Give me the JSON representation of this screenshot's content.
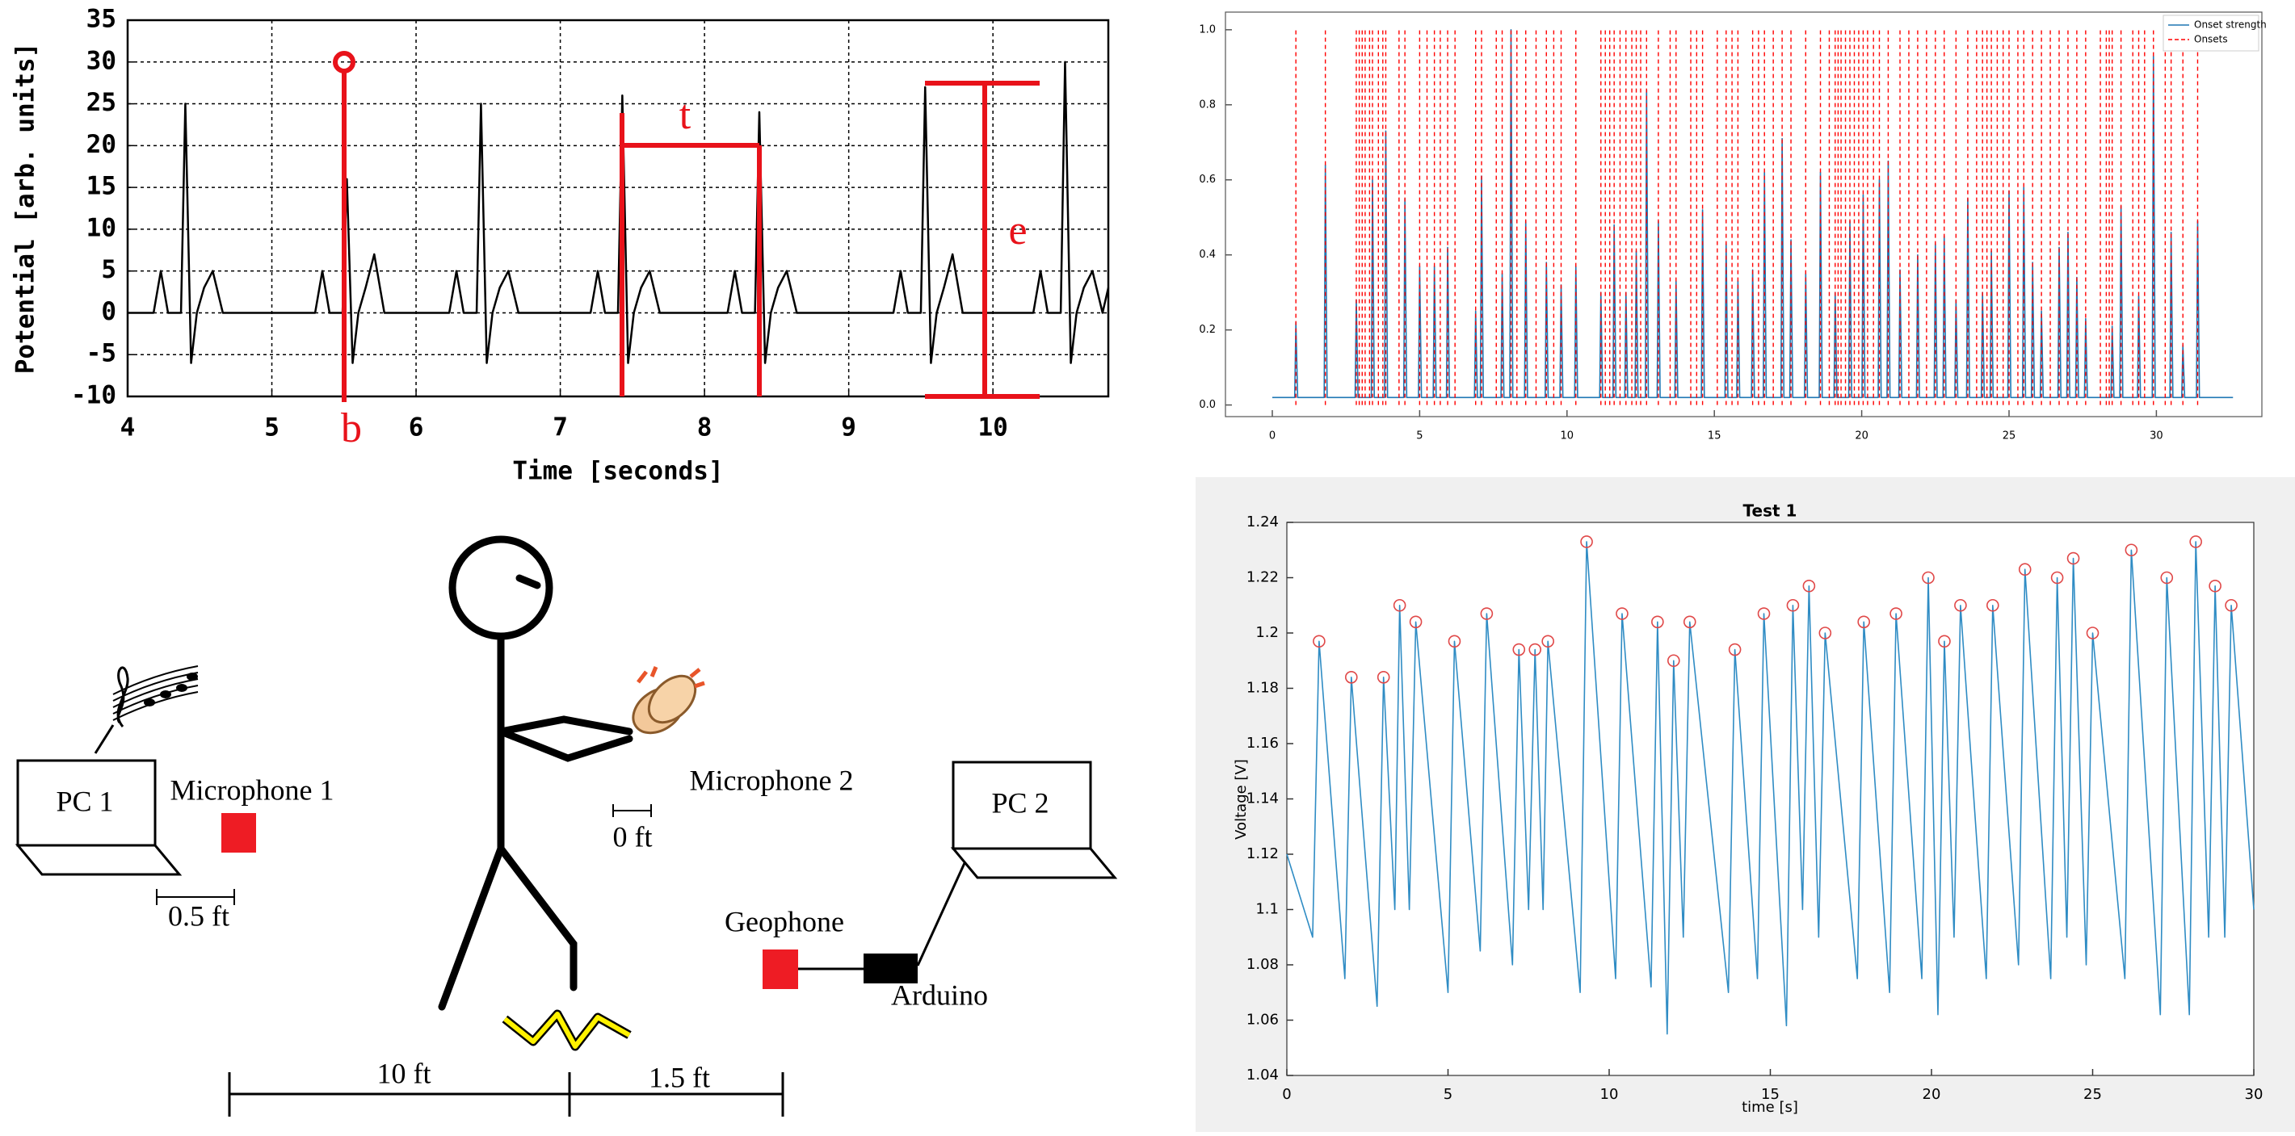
{
  "chart_data": [
    {
      "type": "line",
      "xlabel": "Time [seconds]",
      "ylabel": "Potential [arb. units]",
      "annotations": [
        "b",
        "t",
        "e"
      ],
      "xlim": [
        4,
        10.8
      ],
      "ylim": [
        -10,
        35
      ],
      "xticks": [
        4,
        5,
        6,
        7,
        8,
        9,
        10
      ],
      "yticks": [
        -10,
        -5,
        0,
        5,
        10,
        15,
        20,
        25,
        30,
        35
      ],
      "grid": true,
      "x": [
        4.0,
        4.18,
        4.23,
        4.28,
        4.37,
        4.4,
        4.44,
        4.48,
        4.53,
        4.59,
        4.66,
        5.3,
        5.35,
        5.4,
        5.49,
        5.52,
        5.56,
        5.6,
        5.65,
        5.71,
        5.78,
        6.23,
        6.28,
        6.33,
        6.42,
        6.45,
        6.49,
        6.53,
        6.58,
        6.64,
        6.71,
        7.21,
        7.26,
        7.31,
        7.4,
        7.43,
        7.47,
        7.51,
        7.56,
        7.62,
        7.69,
        8.16,
        8.21,
        8.26,
        8.35,
        8.38,
        8.42,
        8.46,
        8.51,
        8.57,
        8.64,
        9.31,
        9.36,
        9.41,
        9.5,
        9.53,
        9.57,
        9.61,
        9.66,
        9.72,
        9.79,
        10.28,
        10.33,
        10.38,
        10.47,
        10.5,
        10.54,
        10.58,
        10.63,
        10.69,
        10.76,
        10.8
      ],
      "series": [
        {
          "color": "#000000",
          "values": [
            0,
            0,
            5,
            0,
            0,
            25,
            -6,
            0,
            3,
            5,
            0,
            0,
            5,
            0,
            0,
            16,
            -6,
            0,
            3,
            7,
            0,
            0,
            5,
            0,
            0,
            25,
            -6,
            0,
            3,
            5,
            0,
            0,
            5,
            0,
            0,
            26,
            -6,
            0,
            3,
            5,
            0,
            0,
            5,
            0,
            0,
            24,
            -6,
            0,
            3,
            5,
            0,
            0,
            5,
            0,
            0,
            27,
            -6,
            0,
            3,
            7,
            0,
            0,
            5,
            0,
            0,
            30,
            -6,
            0,
            3,
            5,
            0,
            3
          ]
        }
      ]
    },
    {
      "type": "line",
      "legend": "upper right",
      "xlim": [
        -1.59,
        33.58
      ],
      "ylim": [
        -0.031,
        1.047
      ],
      "xticks": [
        0,
        5,
        10,
        15,
        20,
        25,
        30
      ],
      "yticks": [
        {
          "value": 0,
          "label": "0.0"
        },
        0.2,
        0.4,
        0.6,
        0.8,
        {
          "value": 1,
          "label": "1.0"
        }
      ],
      "grid": false,
      "series": [
        {
          "name": "Onset strength",
          "color": "#1f77b4",
          "x": [
            0,
            0.76,
            0.8,
            0.86,
            1.76,
            1.8,
            1.86,
            2.81,
            2.85,
            2.91,
            3.36,
            3.4,
            3.46,
            3.81,
            3.85,
            3.91,
            4.46,
            4.5,
            4.56,
            4.96,
            5.0,
            5.06,
            5.46,
            5.5,
            5.56,
            5.91,
            5.95,
            6.01,
            6.86,
            6.9,
            6.96,
            7.06,
            7.1,
            7.16,
            7.76,
            7.8,
            7.86,
            8.06,
            8.1,
            8.16,
            8.56,
            8.6,
            8.66,
            9.26,
            9.3,
            9.36,
            9.76,
            9.8,
            9.86,
            10.26,
            10.3,
            10.36,
            11.11,
            11.15,
            11.21,
            11.56,
            11.6,
            11.66,
            11.96,
            12.0,
            12.06,
            12.31,
            12.35,
            12.41,
            12.66,
            12.7,
            12.76,
            13.06,
            13.1,
            13.16,
            13.66,
            13.7,
            13.76,
            14.56,
            14.6,
            14.66,
            15.36,
            15.4,
            15.46,
            15.76,
            15.8,
            15.86,
            16.26,
            16.3,
            16.36,
            16.66,
            16.7,
            16.76,
            17.26,
            17.3,
            17.36,
            17.56,
            17.6,
            17.66,
            18.06,
            18.1,
            18.16,
            18.56,
            18.6,
            18.66,
            19.06,
            19.1,
            19.16,
            19.56,
            19.6,
            19.66,
            20.01,
            20.05,
            20.11,
            20.56,
            20.6,
            20.66,
            20.86,
            20.9,
            20.96,
            21.26,
            21.3,
            21.36,
            21.86,
            21.9,
            21.96,
            22.46,
            22.5,
            22.56,
            22.76,
            22.8,
            22.86,
            23.16,
            23.2,
            23.26,
            23.56,
            23.6,
            23.66,
            24.06,
            24.1,
            24.16,
            24.36,
            24.4,
            24.46,
            24.96,
            25.0,
            25.06,
            25.46,
            25.5,
            25.56,
            25.76,
            25.8,
            25.86,
            26.06,
            26.1,
            26.16,
            26.66,
            26.7,
            26.76,
            26.96,
            27.0,
            27.06,
            27.26,
            27.3,
            27.36,
            27.56,
            27.6,
            27.66,
            28.46,
            28.5,
            28.56,
            28.76,
            28.8,
            28.86,
            29.36,
            29.4,
            29.46,
            29.86,
            29.9,
            29.96,
            30.46,
            30.5,
            30.56,
            30.86,
            30.9,
            30.96,
            31.36,
            31.4,
            31.46,
            32.6
          ],
          "values": [
            0.02,
            0.02,
            0.22,
            0.02,
            0.02,
            0.64,
            0.02,
            0.02,
            0.28,
            0.02,
            0.02,
            0.6,
            0.02,
            0.02,
            0.73,
            0.02,
            0.02,
            0.55,
            0.02,
            0.02,
            0.37,
            0.02,
            0.02,
            0.37,
            0.02,
            0.02,
            0.42,
            0.02,
            0.02,
            0.25,
            0.02,
            0.02,
            0.61,
            0.02,
            0.02,
            0.35,
            0.02,
            0.02,
            1.0,
            0.02,
            0.02,
            0.49,
            0.02,
            0.02,
            0.38,
            0.02,
            0.02,
            0.32,
            0.02,
            0.02,
            0.37,
            0.02,
            0.02,
            0.3,
            0.02,
            0.02,
            0.48,
            0.02,
            0.02,
            0.3,
            0.02,
            0.02,
            0.41,
            0.02,
            0.02,
            0.84,
            0.02,
            0.02,
            0.49,
            0.02,
            0.02,
            0.33,
            0.02,
            0.02,
            0.52,
            0.02,
            0.02,
            0.43,
            0.02,
            0.02,
            0.33,
            0.02,
            0.02,
            0.36,
            0.02,
            0.02,
            0.62,
            0.02,
            0.02,
            0.71,
            0.02,
            0.02,
            0.44,
            0.02,
            0.02,
            0.35,
            0.02,
            0.02,
            0.62,
            0.02,
            0.02,
            0.3,
            0.02,
            0.02,
            0.49,
            0.02,
            0.02,
            0.56,
            0.02,
            0.02,
            0.6,
            0.02,
            0.02,
            0.65,
            0.02,
            0.02,
            0.36,
            0.02,
            0.02,
            0.4,
            0.02,
            0.02,
            0.43,
            0.02,
            0.02,
            0.45,
            0.02,
            0.02,
            0.28,
            0.02,
            0.02,
            0.55,
            0.02,
            0.02,
            0.3,
            0.02,
            0.02,
            0.41,
            0.02,
            0.02,
            0.57,
            0.02,
            0.02,
            0.58,
            0.02,
            0.02,
            0.38,
            0.02,
            0.02,
            0.25,
            0.02,
            0.02,
            0.42,
            0.02,
            0.02,
            0.46,
            0.02,
            0.02,
            0.34,
            0.02,
            0.02,
            0.23,
            0.02,
            0.02,
            0.21,
            0.02,
            0.02,
            0.53,
            0.02,
            0.02,
            0.29,
            0.02,
            0.02,
            0.93,
            0.02,
            0.02,
            0.46,
            0.02,
            0.02,
            0.16,
            0.02,
            0.02,
            0.49,
            0.02,
            0.02
          ]
        },
        {
          "name": "Onsets",
          "color": "#ff0000",
          "type": "vline",
          "linestyle": "dashed",
          "x": [
            0.8,
            1.8,
            2.85,
            2.95,
            3.05,
            3.15,
            3.3,
            3.4,
            3.6,
            3.75,
            3.85,
            4.3,
            4.5,
            5.0,
            5.25,
            5.5,
            5.7,
            5.95,
            6.2,
            6.9,
            7.1,
            7.6,
            7.8,
            8.1,
            8.3,
            8.6,
            8.95,
            9.3,
            9.55,
            9.8,
            10.3,
            11.15,
            11.3,
            11.45,
            11.6,
            11.8,
            12.0,
            12.2,
            12.35,
            12.5,
            12.7,
            13.1,
            13.5,
            13.7,
            14.2,
            14.4,
            14.6,
            15.1,
            15.4,
            15.6,
            15.8,
            16.3,
            16.5,
            16.7,
            17.0,
            17.3,
            17.6,
            18.1,
            18.6,
            18.9,
            19.1,
            19.2,
            19.3,
            19.45,
            19.6,
            19.75,
            19.9,
            20.05,
            20.2,
            20.4,
            20.6,
            20.9,
            21.3,
            21.6,
            21.9,
            22.2,
            22.5,
            22.8,
            23.2,
            23.6,
            23.9,
            24.1,
            24.25,
            24.4,
            24.6,
            24.8,
            25.0,
            25.3,
            25.5,
            25.8,
            26.1,
            26.4,
            26.7,
            27.0,
            27.3,
            27.6,
            28.1,
            28.3,
            28.4,
            28.5,
            28.8,
            29.2,
            29.4,
            29.6,
            29.9,
            30.3,
            30.5,
            30.9,
            31.4
          ]
        }
      ]
    },
    {
      "type": "line",
      "title": "Test 1",
      "xlabel": "time [s]",
      "ylabel": "Voltage [V]",
      "xlim": [
        0,
        30
      ],
      "ylim": [
        1.04,
        1.24
      ],
      "xticks": [
        0,
        5,
        10,
        15,
        20,
        25,
        30
      ],
      "yticks": [
        1.04,
        1.06,
        1.08,
        1.1,
        1.12,
        1.14,
        1.16,
        1.18,
        1.2,
        1.22,
        1.24
      ],
      "grid": false,
      "series": [
        {
          "color": "#2f8cc4",
          "x": [
            0,
            0.8,
            1.0,
            1.8,
            2.0,
            2.8,
            3.0,
            3.35,
            3.5,
            3.8,
            4.0,
            5.0,
            5.2,
            6.0,
            6.2,
            7.0,
            7.2,
            7.5,
            7.7,
            7.95,
            8.1,
            9.1,
            9.3,
            10.2,
            10.4,
            11.3,
            11.5,
            11.8,
            12.0,
            12.3,
            12.5,
            13.7,
            13.9,
            14.6,
            14.8,
            15.5,
            15.7,
            16.0,
            16.2,
            16.5,
            16.7,
            17.7,
            17.9,
            18.7,
            18.9,
            19.7,
            19.9,
            20.2,
            20.4,
            20.7,
            20.9,
            21.7,
            21.9,
            22.7,
            22.9,
            23.7,
            23.9,
            24.2,
            24.4,
            24.8,
            25.0,
            26.0,
            26.2,
            27.1,
            27.3,
            28.0,
            28.2,
            28.6,
            28.8,
            29.1,
            29.3,
            30.0
          ],
          "values": [
            1.12,
            1.09,
            1.197,
            1.075,
            1.184,
            1.065,
            1.184,
            1.1,
            1.21,
            1.1,
            1.204,
            1.07,
            1.197,
            1.085,
            1.207,
            1.08,
            1.194,
            1.1,
            1.194,
            1.1,
            1.197,
            1.07,
            1.233,
            1.075,
            1.207,
            1.072,
            1.204,
            1.055,
            1.19,
            1.09,
            1.204,
            1.07,
            1.194,
            1.075,
            1.207,
            1.058,
            1.21,
            1.1,
            1.217,
            1.09,
            1.2,
            1.075,
            1.204,
            1.07,
            1.207,
            1.075,
            1.22,
            1.062,
            1.197,
            1.09,
            1.21,
            1.075,
            1.21,
            1.08,
            1.223,
            1.075,
            1.22,
            1.09,
            1.227,
            1.08,
            1.2,
            1.075,
            1.23,
            1.062,
            1.22,
            1.062,
            1.233,
            1.09,
            1.217,
            1.09,
            1.21,
            1.1
          ]
        },
        {
          "color": "#e04848",
          "type": "scatter",
          "x": [
            1.0,
            2.0,
            3.0,
            3.5,
            4.0,
            5.2,
            6.2,
            7.2,
            7.7,
            8.1,
            9.3,
            10.4,
            11.5,
            12.0,
            12.5,
            13.9,
            14.8,
            15.7,
            16.2,
            16.7,
            17.9,
            18.9,
            19.9,
            20.4,
            20.9,
            21.9,
            22.9,
            23.9,
            24.4,
            25.0,
            26.2,
            27.3,
            28.2,
            28.8,
            29.3
          ],
          "values": [
            1.197,
            1.184,
            1.184,
            1.21,
            1.204,
            1.197,
            1.207,
            1.194,
            1.194,
            1.197,
            1.233,
            1.207,
            1.204,
            1.19,
            1.204,
            1.194,
            1.207,
            1.21,
            1.217,
            1.2,
            1.204,
            1.207,
            1.22,
            1.197,
            1.21,
            1.21,
            1.223,
            1.22,
            1.227,
            1.2,
            1.23,
            1.22,
            1.233,
            1.217,
            1.21
          ]
        }
      ]
    }
  ],
  "diagram": {
    "pc1": "PC 1",
    "microphone1": "Microphone 1",
    "scale1": "0.5 ft",
    "microphone2": "Microphone 2",
    "scale2": "0 ft",
    "pc2": "PC 2",
    "geophone": "Geophone",
    "arduino": "Arduino",
    "distance1": "10 ft",
    "distance2": "1.5 ft"
  }
}
